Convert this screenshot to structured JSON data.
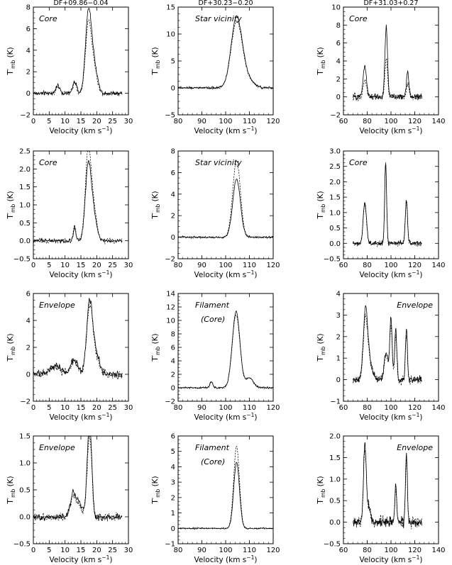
{
  "figure": {
    "column_titles": [
      "DF+09.86−0.04",
      "DF+30.23−0.20",
      "DF+31.03+0.27"
    ],
    "ylabel": "T′",
    "ylabel_sub": "mb",
    "ylabel_unit": "(K)",
    "xlabel": "Velocity (km s",
    "xlabel_sup": "−1",
    "xlabel_end": ")"
  },
  "chart_data": [
    {
      "type": "line",
      "row": 0,
      "col": 0,
      "annotation": "Core",
      "xlim": [
        0,
        30
      ],
      "ylim": [
        -2,
        8
      ],
      "xticks": [
        0,
        5,
        10,
        15,
        20,
        25,
        30
      ],
      "yticks": [
        -2,
        0,
        2,
        4,
        6,
        8
      ],
      "xrange": [
        0,
        28
      ],
      "noise": 0.18,
      "baseline": 0.0,
      "components": [
        [
          7.7,
          0.7,
          0.65
        ],
        [
          13,
          1.1,
          0.6
        ],
        [
          17.3,
          6.8,
          0.9
        ],
        [
          18.9,
          3.0,
          1.1
        ]
      ],
      "dash_scale": 0.85
    },
    {
      "type": "line",
      "row": 0,
      "col": 1,
      "annotation": "Star vicinity",
      "xlim": [
        80,
        120
      ],
      "ylim": [
        -5,
        15
      ],
      "xticks": [
        80,
        90,
        100,
        110,
        120
      ],
      "yticks": [
        -5,
        0,
        5,
        10,
        15
      ],
      "xrange": [
        80,
        120
      ],
      "noise": 0.18,
      "baseline": 0.0,
      "components": [
        [
          104.6,
          12.9,
          2.3
        ],
        [
          109,
          1.6,
          2.5
        ]
      ],
      "dash_scale": 0.94
    },
    {
      "type": "line",
      "row": 0,
      "col": 2,
      "annotation": "Core",
      "xlim": [
        60,
        140
      ],
      "ylim": [
        -2,
        10
      ],
      "xticks": [
        60,
        80,
        100,
        120,
        140
      ],
      "yticks": [
        -2,
        0,
        2,
        4,
        6,
        8,
        10
      ],
      "xrange": [
        68,
        126
      ],
      "noise": 0.3,
      "baseline": 0.0,
      "components": [
        [
          78,
          3.4,
          1.4
        ],
        [
          96,
          7.8,
          1.1
        ],
        [
          114,
          2.8,
          1.0
        ]
      ],
      "dash_scale": 0.55
    },
    {
      "type": "line",
      "row": 1,
      "col": 0,
      "annotation": "Core",
      "xlim": [
        0,
        30
      ],
      "ylim": [
        -0.5,
        2.5
      ],
      "xticks": [
        0,
        5,
        10,
        15,
        20,
        25,
        30
      ],
      "yticks": [
        -0.5,
        0.0,
        0.5,
        1.0,
        1.5,
        2.0,
        2.5
      ],
      "xrange": [
        0,
        28
      ],
      "noise": 0.05,
      "baseline": 0.0,
      "components": [
        [
          13,
          0.35,
          0.4
        ],
        [
          17.3,
          2.05,
          0.9
        ],
        [
          19,
          0.7,
          1.0
        ]
      ],
      "dash_scale": 1.18
    },
    {
      "type": "line",
      "row": 1,
      "col": 1,
      "annotation": "Star vicinity",
      "xlim": [
        80,
        120
      ],
      "ylim": [
        -2,
        8
      ],
      "xticks": [
        80,
        90,
        100,
        110,
        120
      ],
      "yticks": [
        -2,
        0,
        2,
        4,
        6,
        8
      ],
      "xrange": [
        80,
        120
      ],
      "noise": 0.08,
      "baseline": 0.0,
      "components": [
        [
          104.6,
          5.4,
          1.6
        ]
      ],
      "dash_scale": 1.32
    },
    {
      "type": "line",
      "row": 1,
      "col": 2,
      "annotation": "Core",
      "xlim": [
        60,
        140
      ],
      "ylim": [
        -0.5,
        3.0
      ],
      "xticks": [
        60,
        80,
        100,
        120,
        140
      ],
      "yticks": [
        -0.5,
        0.0,
        0.5,
        1.0,
        1.5,
        2.0,
        2.5,
        3.0
      ],
      "xrange": [
        68,
        126
      ],
      "noise": 0.07,
      "baseline": 0.0,
      "components": [
        [
          78,
          1.3,
          1.4
        ],
        [
          95.5,
          2.65,
          0.8
        ],
        [
          113,
          1.4,
          0.9
        ]
      ],
      "dash_scale": 1.0
    },
    {
      "type": "line",
      "row": 2,
      "col": 0,
      "annotation": "Envelope",
      "xlim": [
        0,
        30
      ],
      "ylim": [
        -2,
        6
      ],
      "xticks": [
        0,
        5,
        10,
        15,
        20,
        25,
        30
      ],
      "yticks": [
        -2,
        0,
        2,
        4,
        6
      ],
      "xrange": [
        0,
        28
      ],
      "noise": 0.25,
      "baseline": 0.0,
      "components": [
        [
          7,
          0.6,
          1.8
        ],
        [
          13,
          1.1,
          1.1
        ],
        [
          17.7,
          5.1,
          0.9
        ],
        [
          19.5,
          1.6,
          1.2
        ]
      ],
      "dash_scale": 0.92
    },
    {
      "type": "line",
      "row": 2,
      "col": 1,
      "annotation": "Filament",
      "annotation2": "(Core)",
      "xlim": [
        80,
        120
      ],
      "ylim": [
        -2,
        14
      ],
      "xticks": [
        80,
        90,
        100,
        110,
        120
      ],
      "yticks": [
        -2,
        0,
        2,
        4,
        6,
        8,
        10,
        12,
        14
      ],
      "xrange": [
        80,
        120
      ],
      "noise": 0.12,
      "baseline": 0.0,
      "components": [
        [
          94,
          0.9,
          0.6
        ],
        [
          104.4,
          11.3,
          1.6
        ],
        [
          110,
          1.5,
          1.6
        ]
      ],
      "dash_scale": 0.96
    },
    {
      "type": "line",
      "row": 2,
      "col": 2,
      "annotation": "Envelope",
      "xlim": [
        60,
        140
      ],
      "ylim": [
        -1,
        4
      ],
      "xticks": [
        60,
        80,
        100,
        120,
        140
      ],
      "yticks": [
        -1,
        0,
        1,
        2,
        3,
        4
      ],
      "xrange": [
        68,
        126
      ],
      "noise": 0.14,
      "baseline": 0.0,
      "components": [
        [
          78.5,
          3.1,
          1.8
        ],
        [
          82,
          0.8,
          2.5
        ],
        [
          96,
          1.3,
          1.6
        ],
        [
          100,
          2.8,
          1.0
        ],
        [
          104,
          2.4,
          0.9
        ],
        [
          113,
          2.4,
          0.8
        ]
      ],
      "dash_scale": 0.88
    },
    {
      "type": "line",
      "row": 3,
      "col": 0,
      "annotation": "Envelope",
      "xlim": [
        0,
        30
      ],
      "ylim": [
        -0.5,
        1.5
      ],
      "xticks": [
        0,
        5,
        10,
        15,
        20,
        25,
        30
      ],
      "yticks": [
        -0.5,
        0.0,
        0.5,
        1.0,
        1.5
      ],
      "xrange": [
        0,
        28
      ],
      "noise": 0.06,
      "baseline": 0.0,
      "components": [
        [
          12.5,
          0.45,
          0.8
        ],
        [
          14.5,
          0.25,
          0.9
        ],
        [
          17.4,
          1.32,
          0.6
        ],
        [
          18.2,
          0.9,
          0.5
        ]
      ],
      "dash_scale": 0.85
    },
    {
      "type": "line",
      "row": 3,
      "col": 1,
      "annotation": "Filament",
      "annotation2": "(Core)",
      "xlim": [
        80,
        120
      ],
      "ylim": [
        -1,
        6
      ],
      "xticks": [
        80,
        90,
        100,
        110,
        120
      ],
      "yticks": [
        -1,
        0,
        1,
        2,
        3,
        4,
        5,
        6
      ],
      "xrange": [
        80,
        120
      ],
      "noise": 0.04,
      "baseline": 0.0,
      "components": [
        [
          104.6,
          4.3,
          1.2
        ]
      ],
      "dash_scale": 1.24
    },
    {
      "type": "line",
      "row": 3,
      "col": 2,
      "annotation": "Envelope",
      "xlim": [
        60,
        140
      ],
      "ylim": [
        -0.5,
        2.0
      ],
      "xticks": [
        60,
        80,
        100,
        120,
        140
      ],
      "yticks": [
        -0.5,
        0.0,
        0.5,
        1.0,
        1.5,
        2.0
      ],
      "xrange": [
        68,
        126
      ],
      "noise": 0.1,
      "baseline": 0.0,
      "components": [
        [
          78,
          1.8,
          1.1
        ],
        [
          81,
          0.4,
          1.6
        ],
        [
          104,
          0.85,
          0.8
        ],
        [
          113,
          1.6,
          0.8
        ]
      ],
      "dash_scale": 0.92
    }
  ]
}
